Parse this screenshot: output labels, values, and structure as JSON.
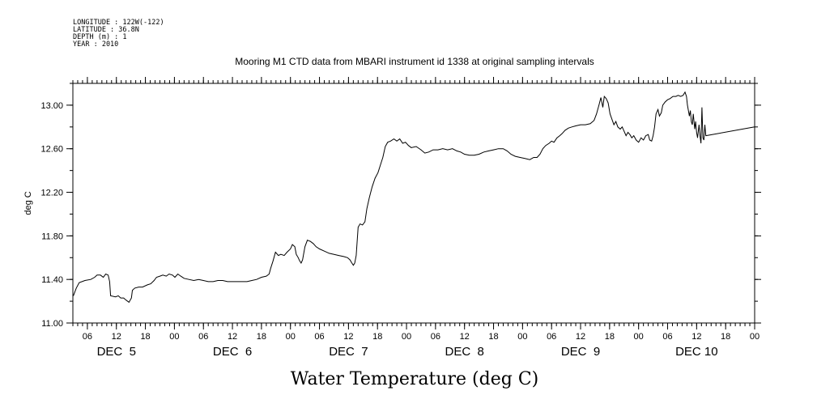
{
  "meta": {
    "lines": [
      "LONGITUDE : 122W(-122)",
      "LATITUDE : 36.8N",
      "DEPTH (m) : 1",
      "YEAR : 2010"
    ]
  },
  "chart_data": {
    "type": "line",
    "title": "Mooring M1 CTD data from MBARI instrument id 1338 at original sampling intervals",
    "xlabel": "Water Temperature (deg C)",
    "ylabel": "deg C",
    "ylim": [
      11.0,
      13.2
    ],
    "xlim_hours": [
      3,
      144
    ],
    "yticks": [
      11.0,
      11.4,
      11.8,
      12.2,
      12.6,
      13.0
    ],
    "ytick_labels": [
      "11.00",
      "11.40",
      "11.80",
      "12.20",
      "12.60",
      "13.00"
    ],
    "xtick_hours": [
      6,
      12,
      18,
      24,
      30,
      36,
      42,
      48,
      54,
      60,
      66,
      72,
      78,
      84,
      90,
      96,
      102,
      108,
      114,
      120,
      126,
      132,
      138,
      144
    ],
    "xtick_labels": [
      "06",
      "12",
      "18",
      "00",
      "06",
      "12",
      "18",
      "00",
      "06",
      "12",
      "18",
      "00",
      "06",
      "12",
      "18",
      "00",
      "06",
      "12",
      "18",
      "00",
      "06",
      "12",
      "18",
      "00"
    ],
    "day_labels": [
      {
        "hour": 12,
        "label": "DEC  5"
      },
      {
        "hour": 36,
        "label": "DEC  6"
      },
      {
        "hour": 60,
        "label": "DEC  7"
      },
      {
        "hour": 84,
        "label": "DEC  8"
      },
      {
        "hour": 108,
        "label": "DEC  9"
      },
      {
        "hour": 132,
        "label": "DEC 10"
      }
    ],
    "grid": false,
    "series": [
      {
        "values_hours": [
          [
            3.1,
            11.25
          ],
          [
            3.7,
            11.32
          ],
          [
            4.3,
            11.37
          ],
          [
            5.5,
            11.39
          ],
          [
            6.7,
            11.4
          ],
          [
            7.5,
            11.42
          ],
          [
            8.0,
            11.44
          ],
          [
            8.7,
            11.44
          ],
          [
            9.3,
            11.42
          ],
          [
            9.8,
            11.45
          ],
          [
            10.3,
            11.44
          ],
          [
            10.6,
            11.38
          ],
          [
            10.8,
            11.25
          ],
          [
            11.8,
            11.24
          ],
          [
            12.4,
            11.25
          ],
          [
            12.9,
            11.23
          ],
          [
            13.5,
            11.23
          ],
          [
            14.0,
            11.21
          ],
          [
            14.6,
            11.19
          ],
          [
            15.1,
            11.23
          ],
          [
            15.3,
            11.3
          ],
          [
            15.8,
            11.32
          ],
          [
            16.6,
            11.33
          ],
          [
            17.4,
            11.33
          ],
          [
            18.4,
            11.35
          ],
          [
            19.1,
            11.36
          ],
          [
            19.8,
            11.39
          ],
          [
            20.3,
            11.42
          ],
          [
            21.0,
            11.43
          ],
          [
            21.6,
            11.44
          ],
          [
            22.3,
            11.43
          ],
          [
            22.9,
            11.45
          ],
          [
            23.6,
            11.44
          ],
          [
            24.1,
            11.42
          ],
          [
            24.7,
            11.45
          ],
          [
            25.3,
            11.43
          ],
          [
            26.0,
            11.41
          ],
          [
            27.0,
            11.4
          ],
          [
            28.0,
            11.39
          ],
          [
            29.0,
            11.4
          ],
          [
            30.0,
            11.39
          ],
          [
            31.0,
            11.38
          ],
          [
            32.0,
            11.38
          ],
          [
            33.0,
            11.39
          ],
          [
            34.0,
            11.39
          ],
          [
            35.0,
            11.38
          ],
          [
            36.0,
            11.38
          ],
          [
            37.0,
            11.38
          ],
          [
            38.0,
            11.38
          ],
          [
            39.0,
            11.38
          ],
          [
            40.0,
            11.39
          ],
          [
            41.0,
            11.4
          ],
          [
            42.0,
            11.42
          ],
          [
            43.0,
            11.43
          ],
          [
            43.6,
            11.45
          ],
          [
            43.9,
            11.5
          ],
          [
            44.4,
            11.57
          ],
          [
            44.9,
            11.65
          ],
          [
            45.5,
            11.62
          ],
          [
            46.0,
            11.63
          ],
          [
            46.7,
            11.62
          ],
          [
            47.3,
            11.65
          ],
          [
            48.0,
            11.68
          ],
          [
            48.4,
            11.72
          ],
          [
            48.9,
            11.7
          ],
          [
            49.2,
            11.63
          ],
          [
            49.6,
            11.6
          ],
          [
            49.9,
            11.57
          ],
          [
            50.2,
            11.55
          ],
          [
            50.5,
            11.58
          ],
          [
            51.0,
            11.7
          ],
          [
            51.5,
            11.76
          ],
          [
            52.1,
            11.75
          ],
          [
            52.7,
            11.73
          ],
          [
            53.3,
            11.7
          ],
          [
            54.0,
            11.68
          ],
          [
            55.0,
            11.66
          ],
          [
            56.0,
            11.64
          ],
          [
            57.0,
            11.63
          ],
          [
            58.0,
            11.62
          ],
          [
            59.0,
            11.61
          ],
          [
            59.8,
            11.6
          ],
          [
            60.3,
            11.58
          ],
          [
            60.7,
            11.55
          ],
          [
            61.0,
            11.53
          ],
          [
            61.3,
            11.55
          ],
          [
            61.6,
            11.62
          ],
          [
            62.0,
            11.88
          ],
          [
            62.4,
            11.91
          ],
          [
            62.9,
            11.9
          ],
          [
            63.4,
            11.93
          ],
          [
            63.8,
            12.05
          ],
          [
            64.3,
            12.15
          ],
          [
            64.9,
            12.25
          ],
          [
            65.5,
            12.33
          ],
          [
            66.1,
            12.38
          ],
          [
            66.6,
            12.45
          ],
          [
            67.1,
            12.52
          ],
          [
            67.6,
            12.62
          ],
          [
            68.1,
            12.66
          ],
          [
            68.7,
            12.67
          ],
          [
            69.4,
            12.69
          ],
          [
            70.0,
            12.67
          ],
          [
            70.6,
            12.69
          ],
          [
            71.2,
            12.65
          ],
          [
            71.8,
            12.66
          ],
          [
            72.4,
            12.63
          ],
          [
            73.0,
            12.61
          ],
          [
            74.0,
            12.62
          ],
          [
            75.0,
            12.59
          ],
          [
            75.8,
            12.56
          ],
          [
            76.6,
            12.57
          ],
          [
            77.5,
            12.59
          ],
          [
            78.5,
            12.59
          ],
          [
            79.5,
            12.6
          ],
          [
            80.5,
            12.59
          ],
          [
            81.5,
            12.6
          ],
          [
            82.4,
            12.58
          ],
          [
            83.2,
            12.57
          ],
          [
            84.0,
            12.55
          ],
          [
            85.0,
            12.54
          ],
          [
            86.0,
            12.54
          ],
          [
            87.0,
            12.55
          ],
          [
            88.0,
            12.57
          ],
          [
            89.0,
            12.58
          ],
          [
            90.0,
            12.59
          ],
          [
            91.0,
            12.6
          ],
          [
            92.0,
            12.6
          ],
          [
            92.8,
            12.58
          ],
          [
            93.6,
            12.55
          ],
          [
            94.5,
            12.53
          ],
          [
            95.5,
            12.52
          ],
          [
            96.5,
            12.51
          ],
          [
            97.5,
            12.5
          ],
          [
            98.3,
            12.52
          ],
          [
            99.0,
            12.52
          ],
          [
            99.6,
            12.55
          ],
          [
            100.2,
            12.6
          ],
          [
            100.8,
            12.63
          ],
          [
            101.5,
            12.65
          ],
          [
            102.0,
            12.67
          ],
          [
            102.5,
            12.66
          ],
          [
            103.1,
            12.7
          ],
          [
            103.7,
            12.72
          ],
          [
            104.2,
            12.74
          ],
          [
            104.8,
            12.77
          ],
          [
            105.5,
            12.79
          ],
          [
            106.2,
            12.8
          ],
          [
            107.0,
            12.81
          ],
          [
            108.0,
            12.82
          ],
          [
            109.0,
            12.82
          ],
          [
            110.0,
            12.83
          ],
          [
            110.8,
            12.86
          ],
          [
            111.3,
            12.92
          ],
          [
            111.8,
            13.0
          ],
          [
            112.2,
            13.07
          ],
          [
            112.6,
            12.98
          ],
          [
            112.9,
            13.08
          ],
          [
            113.3,
            13.06
          ],
          [
            113.7,
            13.02
          ],
          [
            114.1,
            12.92
          ],
          [
            114.5,
            12.87
          ],
          [
            114.9,
            12.82
          ],
          [
            115.3,
            12.85
          ],
          [
            115.7,
            12.8
          ],
          [
            116.2,
            12.78
          ],
          [
            116.6,
            12.8
          ],
          [
            117.0,
            12.76
          ],
          [
            117.4,
            12.72
          ],
          [
            117.8,
            12.75
          ],
          [
            118.2,
            12.73
          ],
          [
            118.6,
            12.7
          ],
          [
            119.0,
            12.72
          ],
          [
            119.5,
            12.68
          ],
          [
            120.0,
            12.66
          ],
          [
            120.5,
            12.7
          ],
          [
            121.0,
            12.68
          ],
          [
            121.5,
            12.72
          ],
          [
            122.0,
            12.73
          ],
          [
            122.3,
            12.68
          ],
          [
            122.7,
            12.67
          ],
          [
            123.0,
            12.72
          ],
          [
            123.3,
            12.8
          ],
          [
            123.6,
            12.92
          ],
          [
            124.0,
            12.96
          ],
          [
            124.3,
            12.9
          ],
          [
            124.7,
            12.93
          ],
          [
            125.0,
            13.0
          ],
          [
            125.5,
            13.03
          ],
          [
            126.0,
            13.05
          ],
          [
            126.5,
            13.06
          ],
          [
            127.1,
            13.08
          ],
          [
            127.7,
            13.08
          ],
          [
            128.2,
            13.09
          ],
          [
            128.7,
            13.08
          ],
          [
            129.2,
            13.09
          ],
          [
            129.6,
            13.12
          ],
          [
            129.9,
            13.08
          ],
          [
            130.1,
            13.0
          ],
          [
            130.3,
            12.95
          ],
          [
            130.5,
            12.9
          ],
          [
            130.7,
            12.95
          ],
          [
            130.9,
            12.85
          ],
          [
            131.1,
            12.82
          ],
          [
            131.3,
            12.92
          ],
          [
            131.6,
            12.78
          ],
          [
            131.8,
            12.85
          ],
          [
            132.0,
            12.75
          ],
          [
            132.2,
            12.7
          ],
          [
            132.5,
            12.82
          ],
          [
            132.7,
            12.72
          ],
          [
            132.9,
            12.65
          ],
          [
            133.1,
            12.98
          ],
          [
            133.3,
            12.7
          ],
          [
            133.5,
            12.68
          ],
          [
            133.7,
            12.82
          ],
          [
            133.9,
            12.72
          ],
          [
            144.0,
            12.8
          ]
        ]
      }
    ]
  }
}
